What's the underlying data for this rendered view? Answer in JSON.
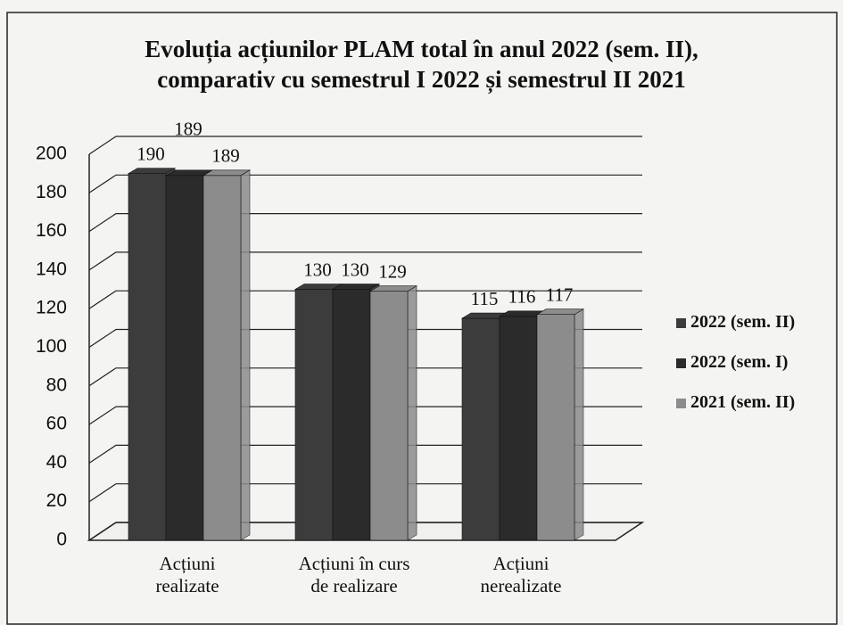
{
  "chart_data": {
    "type": "bar3d",
    "title": "Evoluția acțiunilor PLAM total în anul 2022 (sem. II),\ncomparativ cu semestrul I 2022 și semestrul II 2021",
    "categories": [
      "Acțiuni\nrealizate",
      "Acțiuni în curs\nde realizare",
      "Acțiuni\nnerealizate"
    ],
    "series": [
      {
        "name": "2022 (sem. II)",
        "color": "#3c3c3c",
        "values": [
          190,
          130,
          115
        ]
      },
      {
        "name": "2022 (sem. I)",
        "color": "#2b2b2b",
        "values": [
          189,
          130,
          116
        ]
      },
      {
        "name": "2021 (sem. II)",
        "color": "#8c8c8c",
        "values": [
          189,
          129,
          117
        ]
      }
    ],
    "ylim": [
      0,
      200
    ],
    "yticks": [
      0,
      20,
      40,
      60,
      80,
      100,
      120,
      140,
      160,
      180,
      200
    ],
    "grid": true,
    "legend": "right"
  }
}
